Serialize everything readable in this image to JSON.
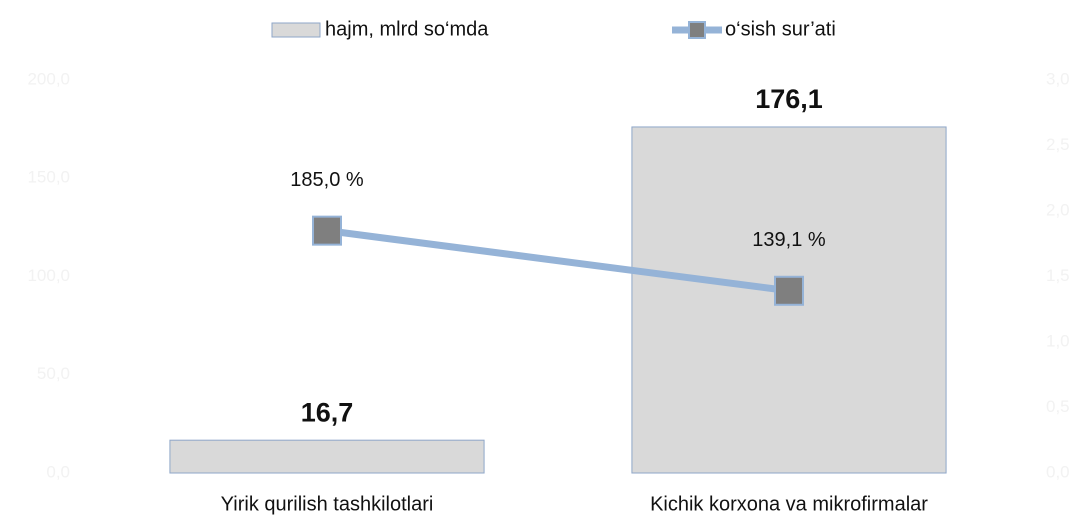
{
  "chart_data": {
    "type": "combo",
    "categories": [
      "Yirik qurilish tashkilotlari",
      "Kichik korxona va mikrofirmalar"
    ],
    "series": [
      {
        "name": "hajm, mlrd so‘mda",
        "type": "bar",
        "color": "#d9d9d9",
        "values": [
          16.7,
          176.1
        ],
        "value_labels": [
          "16,7",
          "176,1"
        ]
      },
      {
        "name": "o‘sish sur’ati",
        "type": "line",
        "axis": "y2",
        "color": "#95b3d7",
        "marker_color": "#7f7f7f",
        "values": [
          1.85,
          1.391
        ],
        "value_labels": [
          "185,0 %",
          "139,1 %"
        ]
      }
    ],
    "ylim": [
      0,
      200
    ],
    "yticks": [
      {
        "value": 0,
        "label": "0,0"
      },
      {
        "value": 50,
        "label": "50,0"
      },
      {
        "value": 100,
        "label": "100,0"
      },
      {
        "value": 150,
        "label": "150,0"
      },
      {
        "value": 200,
        "label": "200,0"
      }
    ],
    "y2lim": [
      0,
      3
    ],
    "y2ticks": [
      {
        "value": 0,
        "label": "0,0"
      },
      {
        "value": 0.5,
        "label": "0,5"
      },
      {
        "value": 1,
        "label": "1,0"
      },
      {
        "value": 1.5,
        "label": "1,5"
      },
      {
        "value": 2,
        "label": "2,0"
      },
      {
        "value": 2.5,
        "label": "2,5"
      },
      {
        "value": 3,
        "label": "3,0"
      }
    ],
    "legend": "top"
  }
}
